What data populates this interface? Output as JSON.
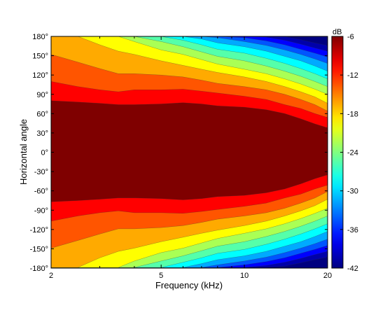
{
  "chart_data": {
    "type": "heatmap",
    "subtype": "filled-contour",
    "xlabel": "Frequency (kHz)",
    "ylabel": "Horizontal angle",
    "x_scale": "log",
    "xlim": [
      2,
      20
    ],
    "ylim": [
      -180,
      180
    ],
    "x_ticks": [
      {
        "value": 2,
        "label": "2"
      },
      {
        "value": 5,
        "label": "5"
      },
      {
        "value": 10,
        "label": "10"
      },
      {
        "value": 20,
        "label": "20"
      }
    ],
    "y_ticks": [
      {
        "value": 180,
        "label": "180°"
      },
      {
        "value": 150,
        "label": "150°"
      },
      {
        "value": 120,
        "label": "120°"
      },
      {
        "value": 90,
        "label": "90°"
      },
      {
        "value": 60,
        "label": "60°"
      },
      {
        "value": 30,
        "label": "30°"
      },
      {
        "value": 0,
        "label": "0°"
      },
      {
        "value": -30,
        "label": "-30°"
      },
      {
        "value": -60,
        "label": "-60°"
      },
      {
        "value": -90,
        "label": "-90°"
      },
      {
        "value": -120,
        "label": "-120°"
      },
      {
        "value": -150,
        "label": "-150°"
      },
      {
        "value": -180,
        "label": "-180°"
      }
    ],
    "colorbar": {
      "unit": "dB",
      "range": [
        -42,
        -6
      ],
      "ticks": [
        {
          "value": -6,
          "label": "-6"
        },
        {
          "value": -12,
          "label": "-12"
        },
        {
          "value": -18,
          "label": "-18"
        },
        {
          "value": -24,
          "label": "-24"
        },
        {
          "value": -30,
          "label": "-30"
        },
        {
          "value": -36,
          "label": "-36"
        },
        {
          "value": -42,
          "label": "-42"
        }
      ],
      "colormap": "jet",
      "level_step_db": 3
    },
    "frequencies_khz": [
      2,
      2.5,
      3,
      3.5,
      4,
      5,
      6,
      7,
      8,
      10,
      12,
      14,
      16,
      18,
      20
    ],
    "contour_edges_deg": {
      "minus_6": [
        78,
        76,
        74,
        72,
        72,
        73,
        75,
        73,
        70,
        68,
        64,
        58,
        50,
        42,
        36
      ],
      "minus_9": [
        108,
        100,
        95,
        92,
        95,
        95,
        96,
        93,
        90,
        85,
        80,
        72,
        66,
        58,
        52
      ],
      "minus_12": [
        150,
        138,
        128,
        120,
        120,
        118,
        115,
        110,
        105,
        100,
        95,
        88,
        80,
        72,
        62
      ],
      "minus_15": [
        180,
        180,
        165,
        155,
        150,
        140,
        133,
        127,
        122,
        115,
        108,
        100,
        92,
        84,
        74
      ],
      "minus_18": [
        180,
        180,
        180,
        180,
        170,
        157,
        150,
        142,
        135,
        127,
        120,
        112,
        104,
        96,
        88
      ],
      "minus_21": [
        180,
        180,
        180,
        180,
        180,
        170,
        162,
        154,
        147,
        140,
        132,
        124,
        116,
        108,
        100
      ],
      "minus_24": [
        180,
        180,
        180,
        180,
        180,
        180,
        172,
        165,
        158,
        152,
        144,
        136,
        128,
        120,
        112
      ],
      "minus_27": [
        180,
        180,
        180,
        180,
        180,
        180,
        180,
        174,
        168,
        162,
        155,
        147,
        140,
        132,
        124
      ],
      "minus_30": [
        180,
        180,
        180,
        180,
        180,
        180,
        180,
        180,
        176,
        170,
        164,
        157,
        150,
        143,
        136
      ],
      "minus_33": [
        180,
        180,
        180,
        180,
        180,
        180,
        180,
        180,
        180,
        176,
        171,
        165,
        158,
        152,
        146
      ],
      "minus_36": [
        180,
        180,
        180,
        180,
        180,
        180,
        180,
        180,
        180,
        180,
        177,
        172,
        166,
        160,
        155
      ],
      "minus_39": [
        180,
        180,
        180,
        180,
        180,
        180,
        180,
        180,
        180,
        180,
        180,
        178,
        173,
        168,
        164
      ]
    },
    "grid": false,
    "legend": "colorbar-right"
  }
}
